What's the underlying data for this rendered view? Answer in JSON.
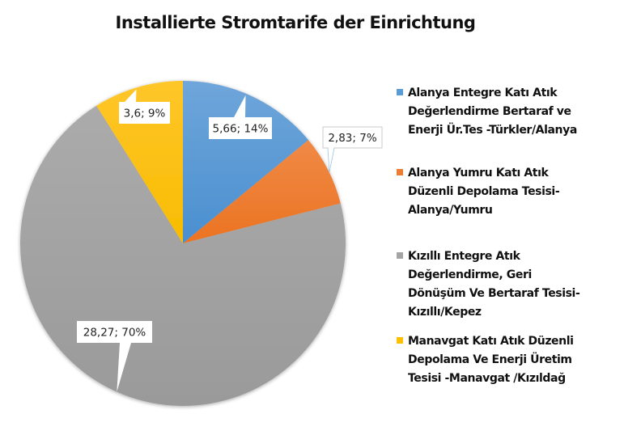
{
  "chart_data": {
    "type": "pie",
    "title": "Installierte Stromtarife der Einrichtung",
    "legend_position": "right",
    "start_angle_deg": 0,
    "direction": "clockwise",
    "slices": [
      {
        "label": " Alanya Entegre Katı Atık\nDeğerlendirme Bertaraf ve\nEnerji Ür.Tes -Türkler/Alanya",
        "value": 5.66,
        "percent": 14,
        "data_label": "5,66; 14%",
        "color": "#5B9BD5"
      },
      {
        "label": "Alanya Yumru Katı Atık\nDüzenli Depolama Tesisi-\nAlanya/Yumru",
        "value": 2.83,
        "percent": 7,
        "data_label": "2,83; 7%",
        "color": "#ED7D31"
      },
      {
        "label": "Kızıllı Entegre Atık\nDeğerlendirme, Geri\nDönüşüm Ve Bertaraf Tesisi-\nKızıllı/Kepez",
        "value": 28.27,
        "percent": 70,
        "data_label": "28,27; 70%",
        "color": "#A5A5A5"
      },
      {
        "label": "Manavgat Katı Atık Düzenli\nDepolama Ve Enerji Üretim\nTesisi -Manavgat /Kızıldağ",
        "value": 3.6,
        "percent": 9,
        "data_label": "3,6; 9%",
        "color": "#FFC000"
      }
    ]
  }
}
